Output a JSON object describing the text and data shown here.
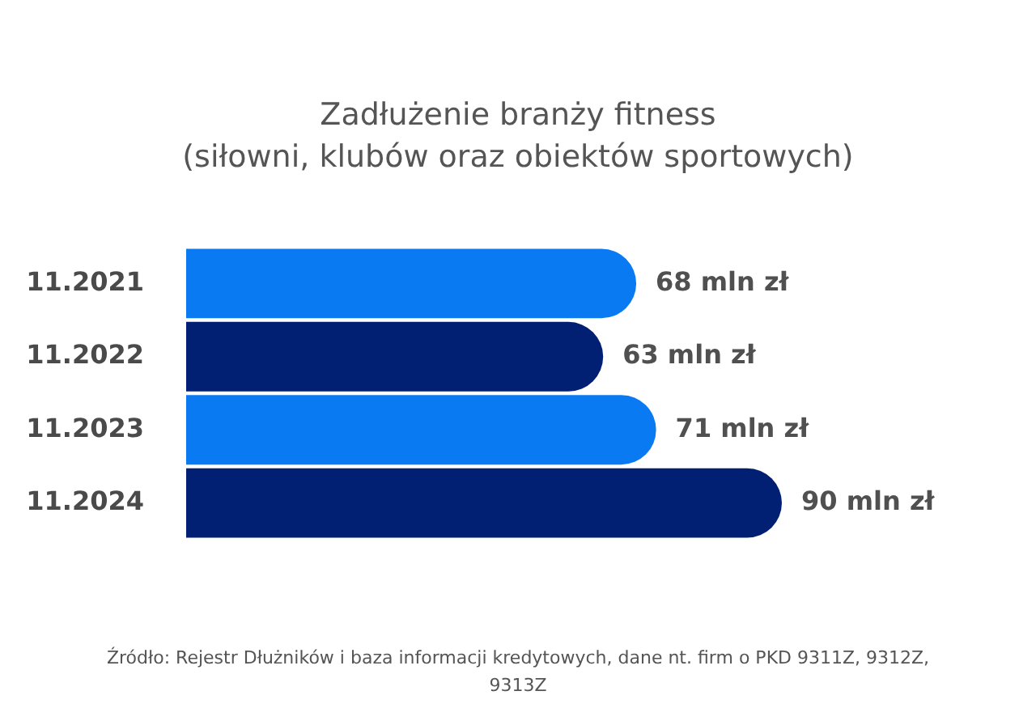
{
  "chart_data": {
    "type": "bar",
    "orientation": "horizontal",
    "title": "Zadłużenie branży fitness\n(siłowni, klubów oraz obiektów sportowych)",
    "categories": [
      "11.2021",
      "11.2022",
      "11.2023",
      "11.2024"
    ],
    "values": [
      68,
      63,
      71,
      90
    ],
    "value_labels": [
      "68 mln zł",
      "63 mln zł",
      "71 mln zł",
      "90 mln zł"
    ],
    "colors": [
      "#0a7af3",
      "#011f73",
      "#0a7af3",
      "#011f73"
    ],
    "tick_labels": "y",
    "annotations": [
      "Źródło: Rejestr Dłużników i baza informacji kredytowych, dane nt. firm o PKD 9311Z, 9312Z, 9313Z"
    ]
  }
}
